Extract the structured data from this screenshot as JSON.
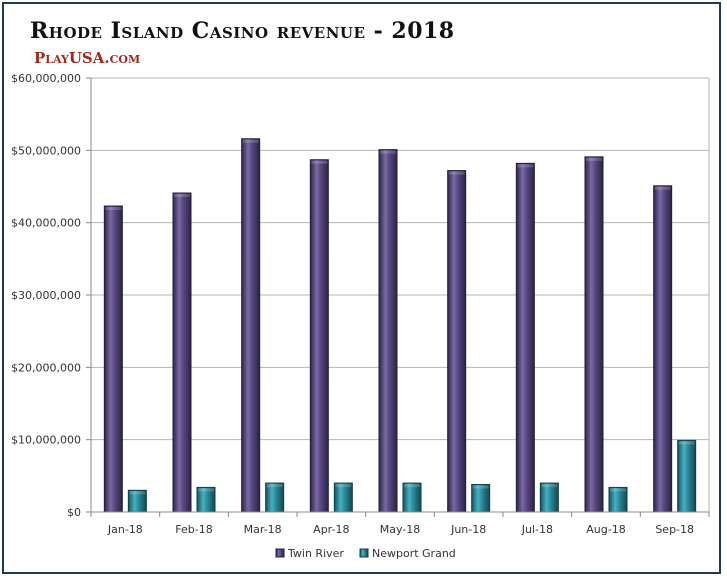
{
  "header": {
    "title": "Rhode Island Casino revenue - 2018",
    "brand": "PlayUSA.com"
  },
  "chart_data": {
    "type": "bar",
    "title": "Rhode Island Casino revenue - 2018",
    "categories": [
      "Jan-18",
      "Feb-18",
      "Mar-18",
      "Apr-18",
      "May-18",
      "Jun-18",
      "Jul-18",
      "Aug-18",
      "Sep-18"
    ],
    "series": [
      {
        "name": "Twin River",
        "color": "#4b3d6f",
        "values": [
          42300000,
          44100000,
          51600000,
          48700000,
          50100000,
          47200000,
          48200000,
          49100000,
          45100000
        ]
      },
      {
        "name": "Newport Grand",
        "color": "#2a8a9a",
        "values": [
          3000000,
          3400000,
          4000000,
          4000000,
          4000000,
          3800000,
          4000000,
          3400000,
          9900000
        ]
      }
    ],
    "yticks": [
      "$0",
      "$10,000,000",
      "$20,000,000",
      "$30,000,000",
      "$40,000,000",
      "$50,000,000",
      "$60,000,000"
    ],
    "ylim": [
      0,
      60000000
    ],
    "grid": true,
    "legend_position": "bottom"
  }
}
